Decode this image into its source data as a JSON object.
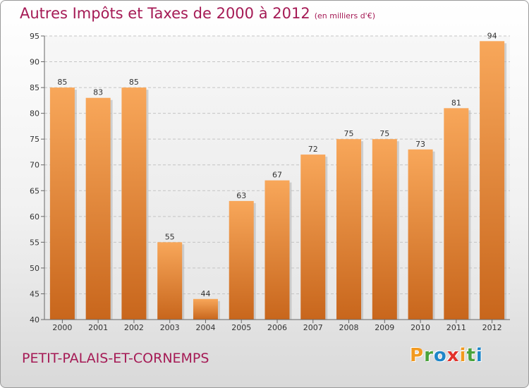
{
  "header": {
    "title": "Autres Impôts et Taxes de 2000 à 2012",
    "subtitle": "(en milliers d'€)"
  },
  "footer": {
    "commune": "PETIT-PALAIS-ET-CORNEMPS",
    "logo": "Proxiti"
  },
  "colors": {
    "title": "#a51a55",
    "bar_light": "#f8a75a",
    "bar_dark": "#c8661c",
    "logo_letters": [
      "#f29a1f",
      "#4aa33c",
      "#1e86c8",
      "#e2322b",
      "#f29a1f",
      "#4aa33c",
      "#1e86c8"
    ]
  },
  "chart_data": {
    "type": "bar",
    "title": "Autres Impôts et Taxes de 2000 à 2012",
    "subtitle": "(en milliers d'€)",
    "categories": [
      "2000",
      "2001",
      "2002",
      "2003",
      "2004",
      "2005",
      "2006",
      "2007",
      "2008",
      "2009",
      "2010",
      "2011",
      "2012"
    ],
    "values": [
      85,
      83,
      85,
      55,
      44,
      63,
      67,
      72,
      75,
      75,
      73,
      81,
      94
    ],
    "ylim": [
      40,
      95
    ],
    "yticks": [
      40,
      45,
      50,
      55,
      60,
      65,
      70,
      75,
      80,
      85,
      90,
      95
    ],
    "grid": true,
    "xlabel": "",
    "ylabel": ""
  }
}
